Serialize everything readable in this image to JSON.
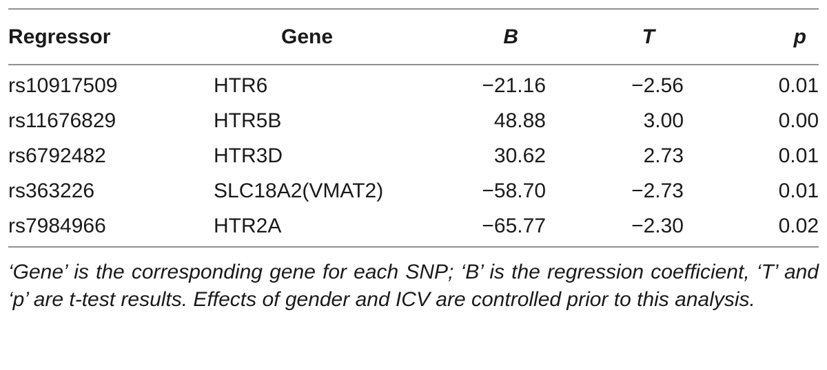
{
  "table": {
    "headers": {
      "regressor": "Regressor",
      "gene": "Gene",
      "b": "B",
      "t": "T",
      "p": "p"
    },
    "rows": [
      {
        "regressor": "rs10917509",
        "gene": "HTR6",
        "b": "−21.16",
        "t": "−2.56",
        "p": "0.01"
      },
      {
        "regressor": "rs11676829",
        "gene": "HTR5B",
        "b": "48.88",
        "t": "3.00",
        "p": "0.00"
      },
      {
        "regressor": "rs6792482",
        "gene": "HTR3D",
        "b": "30.62",
        "t": "2.73",
        "p": "0.01"
      },
      {
        "regressor": "rs363226",
        "gene": "SLC18A2(VMAT2)",
        "b": "−58.70",
        "t": "−2.73",
        "p": "0.01"
      },
      {
        "regressor": "rs7984966",
        "gene": "HTR2A",
        "b": "−65.77",
        "t": "−2.30",
        "p": "0.02"
      }
    ],
    "footnote": "‘Gene’ is the corresponding gene for each SNP; ‘B’ is the regression coefficient, ‘T’ and ‘p’ are t-test results. Effects of gender and ICV are controlled prior to this analysis."
  }
}
